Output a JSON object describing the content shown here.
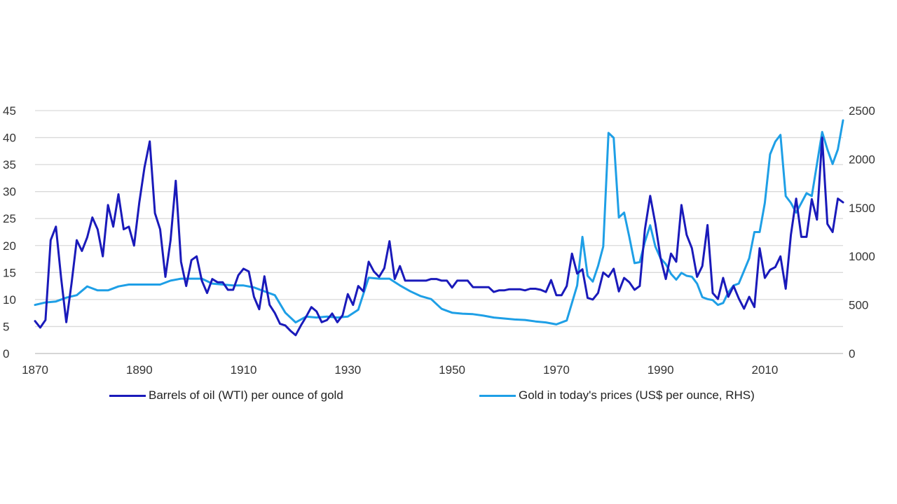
{
  "chart_data": {
    "type": "line",
    "title": "",
    "xlabel": "",
    "ylabel": "",
    "xlim": [
      1870,
      2024
    ],
    "ylim_left": [
      0,
      45
    ],
    "ylim_right": [
      0,
      2500
    ],
    "x_ticks": [
      1870,
      1890,
      1910,
      1930,
      1950,
      1970,
      1990,
      2010
    ],
    "y_left_ticks": [
      0,
      5,
      10,
      15,
      20,
      25,
      30,
      35,
      40,
      45
    ],
    "y_right_ticks": [
      0,
      500,
      1000,
      1500,
      2000,
      2500
    ],
    "grid": true,
    "legend_position": "bottom",
    "series": [
      {
        "name": "Barrels of oil (WTI) per ounce of gold",
        "axis": "left",
        "color": "#1a1aba",
        "points": [
          [
            1870,
            6
          ],
          [
            1871,
            4.8
          ],
          [
            1872,
            6.2
          ],
          [
            1873,
            21
          ],
          [
            1874,
            23.5
          ],
          [
            1875,
            14
          ],
          [
            1876,
            5.8
          ],
          [
            1877,
            13
          ],
          [
            1878,
            21
          ],
          [
            1879,
            19
          ],
          [
            1880,
            21.5
          ],
          [
            1881,
            25.2
          ],
          [
            1882,
            23
          ],
          [
            1883,
            18
          ],
          [
            1884,
            27.5
          ],
          [
            1885,
            23.5
          ],
          [
            1886,
            29.5
          ],
          [
            1887,
            23
          ],
          [
            1888,
            23.5
          ],
          [
            1889,
            20
          ],
          [
            1890,
            28
          ],
          [
            1891,
            34.5
          ],
          [
            1892,
            39.3
          ],
          [
            1893,
            26
          ],
          [
            1894,
            23
          ],
          [
            1895,
            14.2
          ],
          [
            1896,
            21
          ],
          [
            1897,
            32
          ],
          [
            1898,
            17
          ],
          [
            1899,
            12.5
          ],
          [
            1900,
            17.3
          ],
          [
            1901,
            18
          ],
          [
            1902,
            13.5
          ],
          [
            1903,
            11.2
          ],
          [
            1904,
            13.8
          ],
          [
            1905,
            13.2
          ],
          [
            1906,
            13.2
          ],
          [
            1907,
            11.8
          ],
          [
            1908,
            11.8
          ],
          [
            1909,
            14.5
          ],
          [
            1910,
            15.7
          ],
          [
            1911,
            15.2
          ],
          [
            1912,
            10.5
          ],
          [
            1913,
            8.2
          ],
          [
            1914,
            14.3
          ],
          [
            1915,
            9
          ],
          [
            1916,
            7.5
          ],
          [
            1917,
            5.5
          ],
          [
            1918,
            5.2
          ],
          [
            1919,
            4.2
          ],
          [
            1920,
            3.4
          ],
          [
            1921,
            5.2
          ],
          [
            1922,
            6.8
          ],
          [
            1923,
            8.6
          ],
          [
            1924,
            7.8
          ],
          [
            1925,
            5.8
          ],
          [
            1926,
            6.2
          ],
          [
            1927,
            7.4
          ],
          [
            1928,
            5.8
          ],
          [
            1929,
            7.1
          ],
          [
            1930,
            11
          ],
          [
            1931,
            9
          ],
          [
            1932,
            12.5
          ],
          [
            1933,
            11.5
          ],
          [
            1934,
            17
          ],
          [
            1935,
            15.2
          ],
          [
            1936,
            14.2
          ],
          [
            1937,
            15.8
          ],
          [
            1938,
            20.8
          ],
          [
            1939,
            13.8
          ],
          [
            1940,
            16.2
          ],
          [
            1941,
            13.5
          ],
          [
            1942,
            13.5
          ],
          [
            1943,
            13.5
          ],
          [
            1944,
            13.5
          ],
          [
            1945,
            13.5
          ],
          [
            1946,
            13.8
          ],
          [
            1947,
            13.8
          ],
          [
            1948,
            13.5
          ],
          [
            1949,
            13.5
          ],
          [
            1950,
            12.2
          ],
          [
            1951,
            13.5
          ],
          [
            1952,
            13.5
          ],
          [
            1953,
            13.5
          ],
          [
            1954,
            12.3
          ],
          [
            1955,
            12.3
          ],
          [
            1956,
            12.3
          ],
          [
            1957,
            12.3
          ],
          [
            1958,
            11.4
          ],
          [
            1959,
            11.7
          ],
          [
            1960,
            11.7
          ],
          [
            1961,
            11.9
          ],
          [
            1962,
            11.9
          ],
          [
            1963,
            11.9
          ],
          [
            1964,
            11.7
          ],
          [
            1965,
            12
          ],
          [
            1966,
            12
          ],
          [
            1967,
            11.8
          ],
          [
            1968,
            11.4
          ],
          [
            1969,
            13.6
          ],
          [
            1970,
            10.8
          ],
          [
            1971,
            10.8
          ],
          [
            1972,
            12.5
          ],
          [
            1973,
            18.5
          ],
          [
            1974,
            14.8
          ],
          [
            1975,
            15.6
          ],
          [
            1976,
            10.3
          ],
          [
            1977,
            10
          ],
          [
            1978,
            11.2
          ],
          [
            1979,
            15
          ],
          [
            1980,
            14.2
          ],
          [
            1981,
            15.7
          ],
          [
            1982,
            11.5
          ],
          [
            1983,
            14
          ],
          [
            1984,
            13.2
          ],
          [
            1985,
            11.8
          ],
          [
            1986,
            12.5
          ],
          [
            1987,
            23
          ],
          [
            1988,
            29.2
          ],
          [
            1989,
            24
          ],
          [
            1990,
            17.7
          ],
          [
            1991,
            13.8
          ],
          [
            1992,
            18.5
          ],
          [
            1993,
            17
          ],
          [
            1994,
            27.5
          ],
          [
            1995,
            22
          ],
          [
            1996,
            19.5
          ],
          [
            1997,
            14.2
          ],
          [
            1998,
            16.2
          ],
          [
            1999,
            23.8
          ],
          [
            2000,
            11.2
          ],
          [
            2001,
            10.1
          ],
          [
            2002,
            14
          ],
          [
            2003,
            10.5
          ],
          [
            2004,
            12.5
          ],
          [
            2005,
            10.2
          ],
          [
            2006,
            8.3
          ],
          [
            2007,
            10.5
          ],
          [
            2008,
            8.6
          ],
          [
            2009,
            19.5
          ],
          [
            2010,
            14
          ],
          [
            2011,
            15.5
          ],
          [
            2012,
            16
          ],
          [
            2013,
            18
          ],
          [
            2014,
            12
          ],
          [
            2015,
            22
          ],
          [
            2016,
            28.7
          ],
          [
            2017,
            21.6
          ],
          [
            2018,
            21.6
          ],
          [
            2019,
            28.6
          ],
          [
            2020,
            24.8
          ],
          [
            2021,
            40
          ],
          [
            2022,
            24
          ],
          [
            2023,
            22.5
          ],
          [
            2024,
            28.7
          ],
          [
            2025,
            28
          ]
        ]
      },
      {
        "name": "Gold in today's prices (US$ per ounce, RHS)",
        "axis": "right",
        "color": "#1e9fe6",
        "points": [
          [
            1870,
            500
          ],
          [
            1872,
            525
          ],
          [
            1874,
            535
          ],
          [
            1876,
            575
          ],
          [
            1878,
            600
          ],
          [
            1880,
            690
          ],
          [
            1882,
            650
          ],
          [
            1884,
            650
          ],
          [
            1886,
            690
          ],
          [
            1888,
            710
          ],
          [
            1890,
            710
          ],
          [
            1892,
            710
          ],
          [
            1894,
            710
          ],
          [
            1896,
            750
          ],
          [
            1898,
            770
          ],
          [
            1900,
            770
          ],
          [
            1902,
            770
          ],
          [
            1904,
            720
          ],
          [
            1906,
            710
          ],
          [
            1908,
            700
          ],
          [
            1910,
            700
          ],
          [
            1912,
            680
          ],
          [
            1914,
            640
          ],
          [
            1916,
            600
          ],
          [
            1918,
            420
          ],
          [
            1920,
            320
          ],
          [
            1922,
            380
          ],
          [
            1924,
            370
          ],
          [
            1926,
            380
          ],
          [
            1928,
            370
          ],
          [
            1930,
            380
          ],
          [
            1932,
            450
          ],
          [
            1934,
            780
          ],
          [
            1936,
            770
          ],
          [
            1938,
            770
          ],
          [
            1940,
            700
          ],
          [
            1942,
            640
          ],
          [
            1944,
            590
          ],
          [
            1946,
            560
          ],
          [
            1948,
            460
          ],
          [
            1950,
            420
          ],
          [
            1952,
            410
          ],
          [
            1954,
            405
          ],
          [
            1956,
            390
          ],
          [
            1958,
            370
          ],
          [
            1960,
            360
          ],
          [
            1962,
            350
          ],
          [
            1964,
            345
          ],
          [
            1966,
            330
          ],
          [
            1968,
            320
          ],
          [
            1970,
            300
          ],
          [
            1972,
            340
          ],
          [
            1974,
            700
          ],
          [
            1975,
            1200
          ],
          [
            1976,
            800
          ],
          [
            1977,
            740
          ],
          [
            1978,
            900
          ],
          [
            1979,
            1100
          ],
          [
            1980,
            2270
          ],
          [
            1981,
            2220
          ],
          [
            1982,
            1400
          ],
          [
            1983,
            1450
          ],
          [
            1984,
            1200
          ],
          [
            1985,
            930
          ],
          [
            1986,
            940
          ],
          [
            1987,
            1150
          ],
          [
            1988,
            1320
          ],
          [
            1989,
            1100
          ],
          [
            1990,
            980
          ],
          [
            1991,
            920
          ],
          [
            1992,
            820
          ],
          [
            1993,
            760
          ],
          [
            1994,
            830
          ],
          [
            1995,
            800
          ],
          [
            1996,
            790
          ],
          [
            1997,
            720
          ],
          [
            1998,
            580
          ],
          [
            1999,
            560
          ],
          [
            2000,
            550
          ],
          [
            2001,
            500
          ],
          [
            2002,
            520
          ],
          [
            2003,
            630
          ],
          [
            2004,
            700
          ],
          [
            2005,
            720
          ],
          [
            2006,
            850
          ],
          [
            2007,
            980
          ],
          [
            2008,
            1250
          ],
          [
            2009,
            1250
          ],
          [
            2010,
            1550
          ],
          [
            2011,
            2050
          ],
          [
            2012,
            2180
          ],
          [
            2013,
            2250
          ],
          [
            2014,
            1620
          ],
          [
            2015,
            1550
          ],
          [
            2016,
            1450
          ],
          [
            2017,
            1550
          ],
          [
            2018,
            1650
          ],
          [
            2019,
            1620
          ],
          [
            2020,
            1950
          ],
          [
            2021,
            2280
          ],
          [
            2022,
            2100
          ],
          [
            2023,
            1950
          ],
          [
            2024,
            2100
          ],
          [
            2025,
            2400
          ]
        ]
      }
    ]
  }
}
